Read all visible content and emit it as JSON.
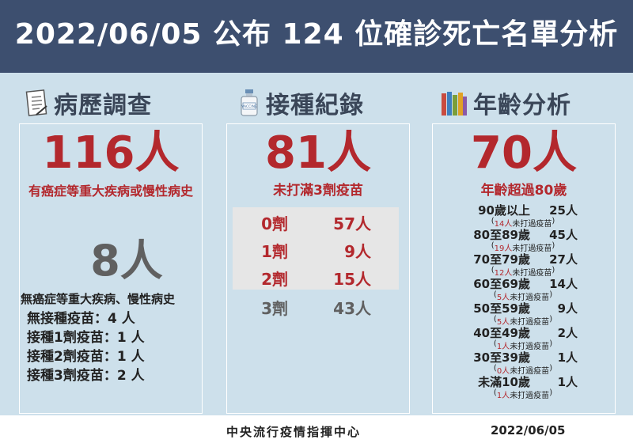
{
  "header": {
    "title": "2022/06/05 公布 124 位確診死亡名單分析"
  },
  "sections": {
    "history": {
      "label": "病歷調查",
      "icon": "document-icon",
      "big": "116人",
      "big_caption": "有癌症等重大疾病或慢性病史",
      "secondary": "8人",
      "secondary_caption": "無癌症等重大疾病、慢性病史",
      "breakdown": [
        {
          "label": "無接種疫苗",
          "value": "：4 人"
        },
        {
          "label": "接種1劑疫苗",
          "value": "：1 人"
        },
        {
          "label": "接種2劑疫苗",
          "value": "：1 人"
        },
        {
          "label": "接種3劑疫苗",
          "value": "：2 人"
        }
      ]
    },
    "vaccination": {
      "label": "接種紀錄",
      "icon": "vaccine-vial-icon",
      "vial_text": "VACCINE",
      "big": "81人",
      "big_caption": "未打滿3劑疫苗",
      "doses": [
        {
          "dose": "0劑",
          "count": "57人"
        },
        {
          "dose": "1劑",
          "count": "9人"
        },
        {
          "dose": "2劑",
          "count": "15人"
        },
        {
          "dose": "3劑",
          "count": "43人"
        }
      ]
    },
    "age": {
      "label": "年齡分析",
      "icon": "books-icon",
      "big": "70人",
      "big_caption": "年齡超過80歲",
      "groups": [
        {
          "range": "90歲以上",
          "count": "25人",
          "unvax": "14人",
          "unvax_suffix": "未打過疫苗"
        },
        {
          "range": "80至89歲",
          "count": "45人",
          "unvax": "19人",
          "unvax_suffix": "未打過疫苗"
        },
        {
          "range": "70至79歲",
          "count": "27人",
          "unvax": "12人",
          "unvax_suffix": "未打過疫苗"
        },
        {
          "range": "60至69歲",
          "count": "14人",
          "unvax": "5人",
          "unvax_suffix": "未打過疫苗"
        },
        {
          "range": "50至59歲",
          "count": "9人",
          "unvax": "5人",
          "unvax_suffix": "未打過疫苗"
        },
        {
          "range": "40至49歲",
          "count": "2人",
          "unvax": "1人",
          "unvax_suffix": "未打過疫苗"
        },
        {
          "range": "30至39歲",
          "count": "1人",
          "unvax": "0人",
          "unvax_suffix": "未打過疫苗"
        },
        {
          "range": "未滿10歲",
          "count": "1人",
          "unvax": "1人",
          "unvax_suffix": "未打過疫苗"
        }
      ]
    }
  },
  "footer": {
    "org": "中央流行疫情指揮中心",
    "date": "2022/06/05"
  },
  "colors": {
    "header_bg": "#3d4f6f",
    "panel_bg": "#cde0eb",
    "accent_red": "#b3282d",
    "dose_box_bg": "#e6e6e6",
    "gray_text": "#606060"
  }
}
